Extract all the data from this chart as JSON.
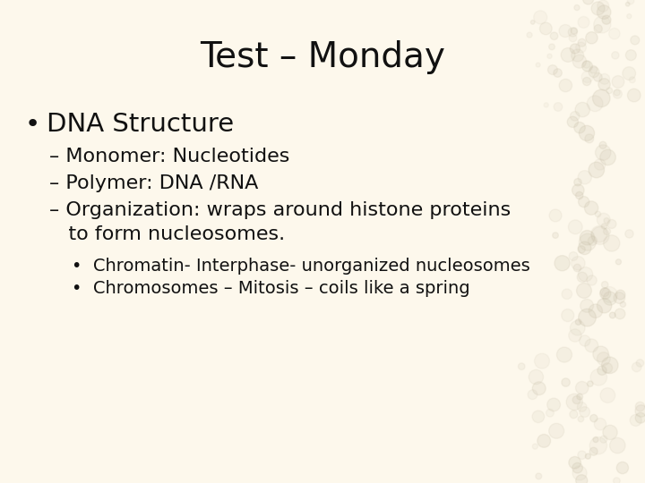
{
  "title": "Test – Monday",
  "background_color": "#fdf8ec",
  "text_color": "#111111",
  "title_fontsize": 28,
  "bullet1_text": "DNA Structure",
  "bullet1_fontsize": 21,
  "sub_bullets": [
    "– Monomer: Nucleotides",
    "– Polymer: DNA /RNA",
    "– Organization: wraps around histone proteins",
    "   to form nucleosomes."
  ],
  "sub_bullet_fontsize": 16,
  "sub_sub_bullets": [
    "•  Chromatin- Interphase- unorganized nucleosomes",
    "•  Chromosomes – Mitosis – coils like a spring"
  ],
  "sub_sub_bullet_fontsize": 14,
  "font_family": "DejaVu Sans",
  "circle_color": "#c8bfa8",
  "figsize": [
    7.2,
    5.4
  ],
  "dpi": 100
}
